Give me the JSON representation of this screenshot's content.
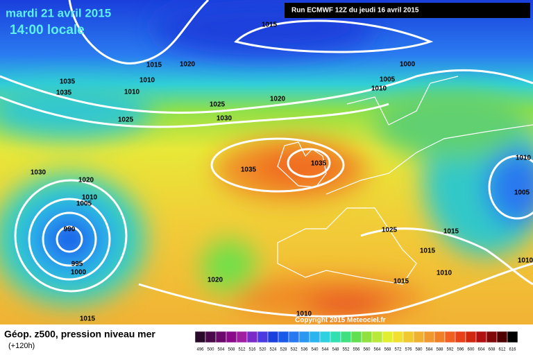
{
  "header": {
    "date": "mardi 21 avril 2015",
    "time": "14:00 locale",
    "run": "Run ECMWF 12Z du jeudi 16 avril 2015"
  },
  "isobar_labels": [
    "1015",
    "1015",
    "1020",
    "1035",
    "1035",
    "1010",
    "1010",
    "1000",
    "1005",
    "1010",
    "1020",
    "1025",
    "1030",
    "1025",
    "1030",
    "1020",
    "1010",
    "1005",
    "1035",
    "1035",
    "1010",
    "1005",
    "990",
    "995",
    "1000",
    "1020",
    "1025",
    "1015",
    "1015",
    "1010",
    "1010",
    "1015",
    "1010",
    "1015"
  ],
  "copyright": "Copyright 2015 Meteociel.fr",
  "footer": {
    "title": "Géop. z500, pression niveau mer",
    "subtitle": "(+120h)"
  },
  "scale": {
    "labels": [
      496,
      500,
      504,
      508,
      512,
      516,
      520,
      524,
      528,
      532,
      536,
      540,
      544,
      548,
      552,
      556,
      560,
      564,
      568,
      572,
      576,
      580,
      584,
      588,
      592,
      596,
      600,
      604,
      608,
      612,
      616
    ],
    "colors": [
      "#2a0a2a",
      "#4a0a4a",
      "#6a0a6a",
      "#8a0a8a",
      "#a01ea0",
      "#7a2ac8",
      "#4a3ae0",
      "#1a3fdc",
      "#1a5ae8",
      "#2a78f0",
      "#2a98f0",
      "#2ab4f0",
      "#30d0e0",
      "#30e0b0",
      "#40e080",
      "#60e050",
      "#90e040",
      "#b8e838",
      "#e0f030",
      "#f0e030",
      "#f0c830",
      "#f0b030",
      "#f09830",
      "#f08028",
      "#f06020",
      "#e84018",
      "#d02810",
      "#b01010",
      "#800808",
      "#500000",
      "#000000"
    ]
  }
}
